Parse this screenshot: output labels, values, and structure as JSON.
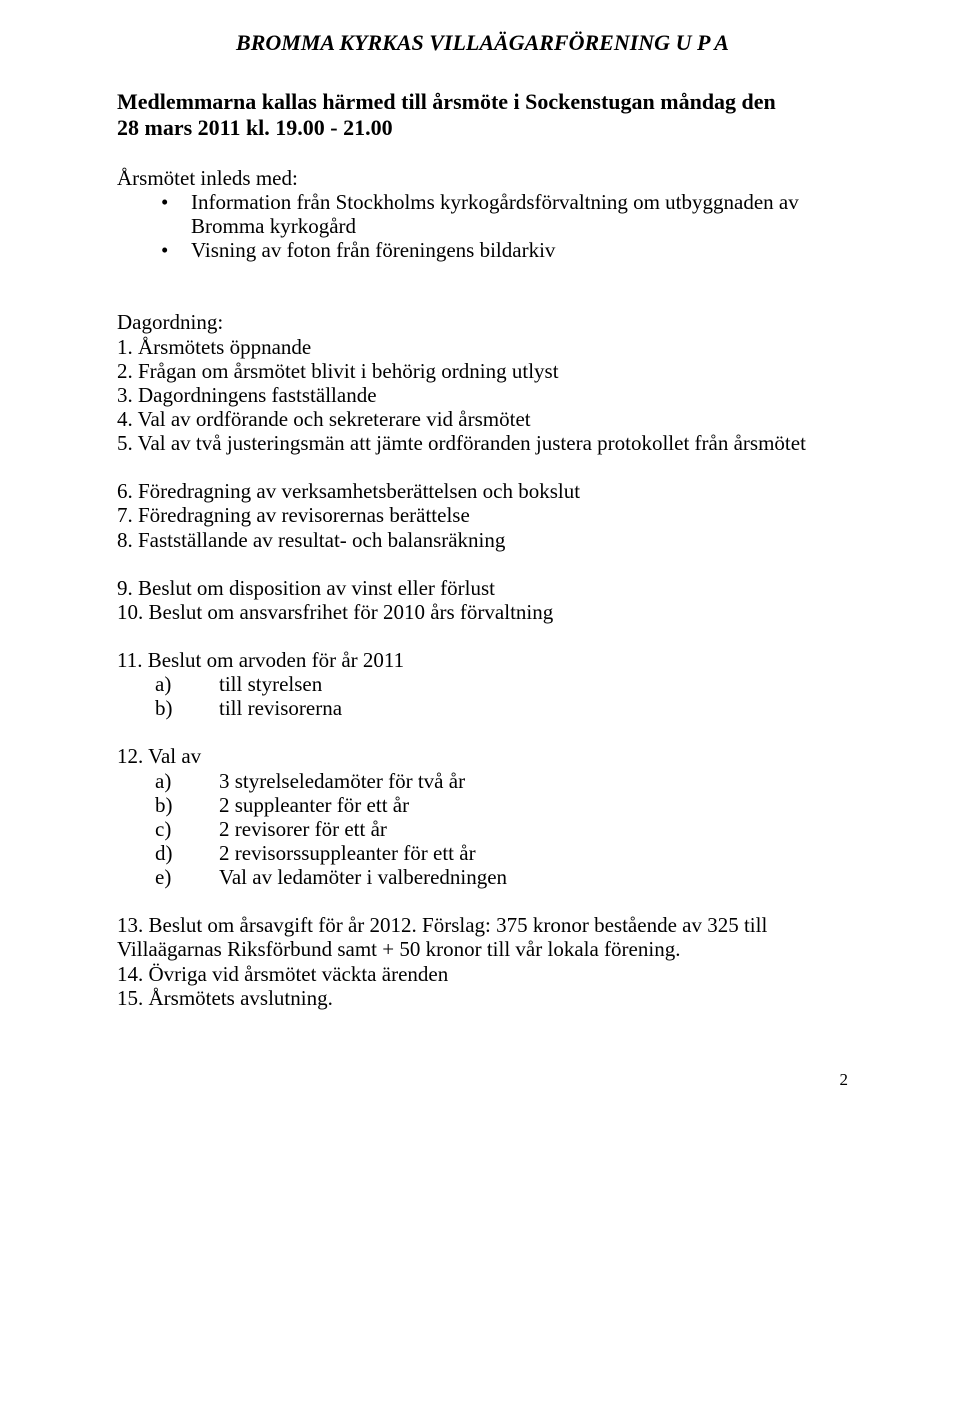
{
  "title": "BROMMA KYRKAS VILLAÄGARFÖRENING U P A",
  "intro": {
    "line1": "Medlemmarna kallas härmed till årsmöte i Sockenstugan måndag den",
    "line2": "28 mars 2011 kl. 19.00 - 21.00"
  },
  "preheading": "Årsmötet inleds med:",
  "bullets": [
    "Information från Stockholms kyrkogårdsförvaltning om utbyggnaden av Bromma kyrkogård",
    "Visning av foton från föreningens bildarkiv"
  ],
  "agenda_heading": "Dagordning:",
  "agenda_group1": [
    "1.  Årsmötets öppnande",
    "2.  Frågan om årsmötet blivit i behörig ordning utlyst",
    "3.  Dagordningens fastställande",
    "4.  Val av ordförande och sekreterare vid årsmötet",
    "5.  Val av två justeringsmän att jämte ordföranden justera protokollet från årsmötet"
  ],
  "agenda_group2": [
    "6.  Föredragning av verksamhetsberättelsen och bokslut",
    "7.  Föredragning av revisorernas berättelse",
    "8.  Fastställande av resultat- och balansräkning"
  ],
  "agenda_group3": [
    "9.  Beslut om disposition av vinst eller förlust",
    "10. Beslut om ansvarsfrihet för 2010 års förvaltning"
  ],
  "item11": {
    "heading": "11. Beslut om arvoden för år 2011",
    "subs": [
      {
        "letter": "a)",
        "text": "till styrelsen"
      },
      {
        "letter": "b)",
        "text": "till revisorerna"
      }
    ]
  },
  "item12": {
    "heading": "12. Val av",
    "subs": [
      {
        "letter": "a)",
        "text": "3 styrelseledamöter för två år"
      },
      {
        "letter": "b)",
        "text": "2 suppleanter för ett år"
      },
      {
        "letter": "c)",
        "text": "2 revisorer för ett år"
      },
      {
        "letter": "d)",
        "text": "2 revisorssuppleanter för ett år"
      },
      {
        "letter": "e)",
        "text": "Val av ledamöter i valberedningen"
      }
    ]
  },
  "agenda_group4": [
    "13. Beslut om årsavgift för år 2012. Förslag: 375 kronor bestående av 325 till Villaägarnas Riksförbund samt + 50 kronor till vår lokala förening.",
    "14. Övriga vid årsmötet väckta ärenden",
    "15. Årsmötets avslutning."
  ],
  "page_number": "2"
}
